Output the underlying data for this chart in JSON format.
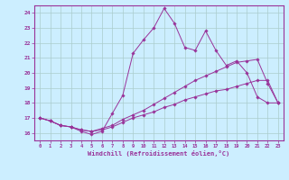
{
  "xlabel": "Windchill (Refroidissement éolien,°C)",
  "bg_color": "#cceeff",
  "grid_color": "#aacccc",
  "line_color": "#993399",
  "xlim": [
    -0.5,
    23.5
  ],
  "ylim": [
    15.5,
    24.5
  ],
  "xticks": [
    0,
    1,
    2,
    3,
    4,
    5,
    6,
    7,
    8,
    9,
    10,
    11,
    12,
    13,
    14,
    15,
    16,
    17,
    18,
    19,
    20,
    21,
    22,
    23
  ],
  "yticks": [
    16,
    17,
    18,
    19,
    20,
    21,
    22,
    23,
    24
  ],
  "line1_x": [
    0,
    1,
    2,
    3,
    4,
    5,
    6,
    7,
    8,
    9,
    10,
    11,
    12,
    13,
    14,
    15,
    16,
    17,
    18,
    19,
    20,
    21,
    22,
    23
  ],
  "line1_y": [
    17.0,
    16.8,
    16.5,
    16.4,
    16.1,
    15.9,
    16.1,
    17.3,
    18.5,
    21.3,
    22.2,
    23.0,
    24.3,
    23.3,
    21.7,
    21.5,
    22.8,
    21.5,
    20.5,
    20.8,
    20.0,
    18.4,
    18.0,
    18.0
  ],
  "line2_x": [
    0,
    1,
    2,
    3,
    4,
    5,
    6,
    7,
    8,
    9,
    10,
    11,
    12,
    13,
    14,
    15,
    16,
    17,
    18,
    19,
    20,
    21,
    22,
    23
  ],
  "line2_y": [
    17.0,
    16.8,
    16.5,
    16.4,
    16.2,
    16.1,
    16.3,
    16.5,
    16.9,
    17.2,
    17.5,
    17.9,
    18.3,
    18.7,
    19.1,
    19.5,
    19.8,
    20.1,
    20.4,
    20.7,
    20.8,
    20.9,
    19.3,
    18.0
  ],
  "line3_x": [
    0,
    1,
    2,
    3,
    4,
    5,
    6,
    7,
    8,
    9,
    10,
    11,
    12,
    13,
    14,
    15,
    16,
    17,
    18,
    19,
    20,
    21,
    22,
    23
  ],
  "line3_y": [
    17.0,
    16.8,
    16.5,
    16.4,
    16.2,
    16.1,
    16.2,
    16.4,
    16.7,
    17.0,
    17.2,
    17.4,
    17.7,
    17.9,
    18.2,
    18.4,
    18.6,
    18.8,
    18.9,
    19.1,
    19.3,
    19.5,
    19.5,
    18.0
  ]
}
